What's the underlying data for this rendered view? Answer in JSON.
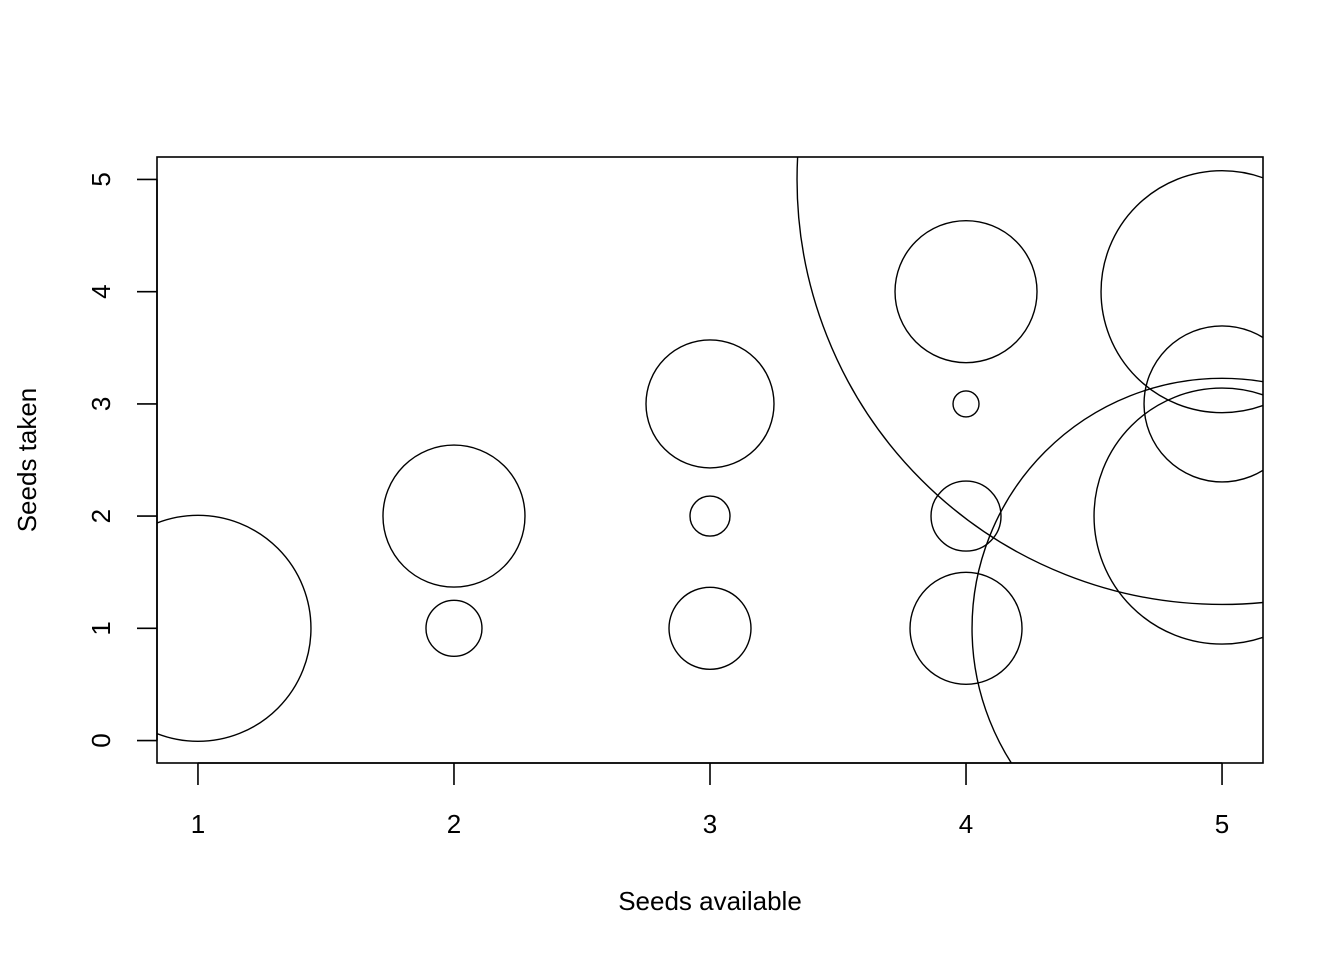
{
  "chart_data": {
    "type": "scatter",
    "xlabel": "Seeds available",
    "ylabel": "Seeds taken",
    "xlim": [
      0.84,
      5.16
    ],
    "ylim": [
      -0.2,
      5.2
    ],
    "x_ticks": [
      "1",
      "2",
      "3",
      "4",
      "5"
    ],
    "y_ticks": [
      "0",
      "1",
      "2",
      "3",
      "4",
      "5"
    ],
    "points": [
      {
        "x": 1,
        "y": 1,
        "size": 113
      },
      {
        "x": 2,
        "y": 1,
        "size": 28
      },
      {
        "x": 2,
        "y": 2,
        "size": 71
      },
      {
        "x": 3,
        "y": 1,
        "size": 41
      },
      {
        "x": 3,
        "y": 2,
        "size": 20
      },
      {
        "x": 3,
        "y": 3,
        "size": 64
      },
      {
        "x": 4,
        "y": 1,
        "size": 56
      },
      {
        "x": 4,
        "y": 2,
        "size": 35
      },
      {
        "x": 4,
        "y": 3,
        "size": 13
      },
      {
        "x": 4,
        "y": 4,
        "size": 71
      },
      {
        "x": 5,
        "y": 1,
        "size": 250
      },
      {
        "x": 5,
        "y": 2,
        "size": 128
      },
      {
        "x": 5,
        "y": 3,
        "size": 78
      },
      {
        "x": 5,
        "y": 4,
        "size": 121
      },
      {
        "x": 5,
        "y": 5,
        "size": 425
      }
    ],
    "grid": false,
    "legend": "none"
  }
}
